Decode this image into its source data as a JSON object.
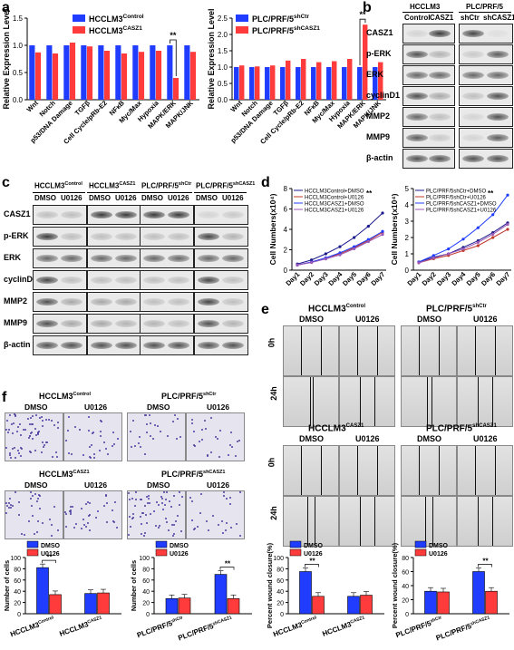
{
  "panels": {
    "a": "a",
    "b": "b",
    "c": "c",
    "d": "d",
    "e": "e",
    "f": "f"
  },
  "colors": {
    "blue": "#1f3cff",
    "red": "#ff3b3b",
    "navy": "#1a1a8c",
    "orange": "#c0392b",
    "purple": "#9b59b6",
    "dark": "#333333"
  },
  "chart_data": [
    {
      "type": "bar",
      "title": "",
      "ylabel": "Relative Expression Level",
      "ylim": [
        0,
        1.5
      ],
      "categories": [
        "Wnt",
        "Notch",
        "p53/DNA Damage",
        "TGFβ",
        "Cell Cycle/pRb-E2",
        "NFκB",
        "Myc/Max",
        "Hypoxia",
        "MAPK/ERK",
        "MAPK/JNK"
      ],
      "series": [
        {
          "name": "HCCLM3Control",
          "values": [
            1,
            1,
            1,
            1,
            1,
            1,
            1,
            1,
            1,
            1
          ]
        },
        {
          "name": "HCCLM3CASZ1",
          "values": [
            0.87,
            0.85,
            1.05,
            0.98,
            0.9,
            0.85,
            0.88,
            0.9,
            0.4,
            0.88
          ]
        }
      ],
      "annotation": "**"
    },
    {
      "type": "bar",
      "title": "",
      "ylabel": "Relative Expression Level",
      "ylim": [
        0,
        2.5
      ],
      "categories": [
        "Wnt",
        "Notch",
        "p53/DNA Damage",
        "TGFβ",
        "Cell Cycle/pRb-E2",
        "NFκB",
        "Myc/Max",
        "Hypoxia",
        "MAPK/ERK",
        "MAPK/JNK"
      ],
      "series": [
        {
          "name": "PLC/PRF/5shCtr",
          "values": [
            1,
            1,
            1,
            1,
            1,
            1,
            1,
            1,
            1,
            1
          ]
        },
        {
          "name": "PLC/PRF/5shCASZ1",
          "values": [
            1.05,
            1.02,
            1.05,
            1.2,
            1.25,
            1.15,
            1.18,
            1.25,
            2.3,
            1.15
          ]
        }
      ],
      "annotation": "**"
    },
    {
      "type": "line",
      "ylabel": "Cell Numbers(x10⁴)",
      "ylim": [
        0,
        8
      ],
      "x": [
        "Day1",
        "Day2",
        "Day3",
        "Day4",
        "Day5",
        "Day6",
        "Day7"
      ],
      "series": [
        {
          "name": "HCCLM3Control+DMSO",
          "values": [
            0.6,
            1.0,
            1.6,
            2.3,
            3.2,
            4.3,
            5.6
          ]
        },
        {
          "name": "HCCLM3Control+U0126",
          "values": [
            0.5,
            0.8,
            1.2,
            1.6,
            2.2,
            2.9,
            3.7
          ]
        },
        {
          "name": "HCCLM3CASZ1+DMSO",
          "values": [
            0.5,
            0.8,
            1.2,
            1.7,
            2.3,
            3.0,
            3.8
          ]
        },
        {
          "name": "HCCLM3CASZ1+U0126",
          "values": [
            0.5,
            0.75,
            1.1,
            1.5,
            2.1,
            2.8,
            3.5
          ]
        }
      ],
      "annotation": "**"
    },
    {
      "type": "line",
      "ylabel": "Cell Numbers(x10⁴)",
      "ylim": [
        0,
        5
      ],
      "x": [
        "Day1",
        "Day2",
        "Day3",
        "Day4",
        "Day5",
        "Day6",
        "Day7"
      ],
      "series": [
        {
          "name": "PLC/PRF/5shCtr+DMSO",
          "values": [
            0.5,
            0.8,
            1.0,
            1.4,
            1.8,
            2.3,
            2.9
          ]
        },
        {
          "name": "PLC/PRF/5shCtr+U0126",
          "values": [
            0.45,
            0.7,
            0.9,
            1.2,
            1.5,
            2.0,
            2.5
          ]
        },
        {
          "name": "PLC/PRF/5shCASZ1+DMSO",
          "values": [
            0.5,
            0.9,
            1.3,
            1.9,
            2.6,
            3.4,
            4.6
          ]
        },
        {
          "name": "PLC/PRF/5shCASZ1+U0126",
          "values": [
            0.45,
            0.75,
            1.0,
            1.3,
            1.7,
            2.2,
            2.8
          ]
        }
      ],
      "annotation": "**"
    },
    {
      "type": "bar",
      "ylabel": "Number of cells",
      "ylim": [
        0,
        100
      ],
      "categories": [
        "HCCLM3Control",
        "HCCLM3CASZ1"
      ],
      "series": [
        {
          "name": "DMSO",
          "values": [
            82,
            36
          ]
        },
        {
          "name": "U0126",
          "values": [
            34,
            37
          ]
        }
      ],
      "annotation": "**"
    },
    {
      "type": "bar",
      "ylabel": "Number of cells",
      "ylim": [
        0,
        100
      ],
      "categories": [
        "PLC/PRF/5shCtr",
        "PLC/PRF/5shCASZ1"
      ],
      "series": [
        {
          "name": "DMSO",
          "values": [
            27,
            70
          ]
        },
        {
          "name": "U0126",
          "values": [
            28,
            27
          ]
        }
      ],
      "annotation": "**"
    },
    {
      "type": "bar",
      "ylabel": "Percent wound closure(%)",
      "ylim": [
        0,
        100
      ],
      "categories": [
        "HCCLM3Control",
        "HCCLM3CASZ1"
      ],
      "series": [
        {
          "name": "DMSO",
          "values": [
            75,
            31
          ]
        },
        {
          "name": "U0126",
          "values": [
            31,
            33
          ]
        }
      ],
      "annotation": "**"
    },
    {
      "type": "bar",
      "ylabel": "Percent wound closure(%)",
      "ylim": [
        0,
        80
      ],
      "categories": [
        "PLC/PRF/5shCtr",
        "PLC/PRF/5shCASZ1"
      ],
      "series": [
        {
          "name": "DMSO",
          "values": [
            32,
            60
          ]
        },
        {
          "name": "U0126",
          "values": [
            31,
            32
          ]
        }
      ],
      "annotation": "**"
    }
  ],
  "panel_b": {
    "group1": "HCCLM3",
    "group2": "PLC/PRF/5",
    "lanes": [
      "Control",
      "CASZ1",
      "shCtr",
      "shCASZ1"
    ],
    "rows": [
      "CASZ1",
      "p-ERK",
      "ERK",
      "cyclinD1",
      "MMP2",
      "MMP9",
      "β-actin"
    ]
  },
  "panel_c": {
    "groups": [
      "HCCLM3",
      "HCCLM3",
      "PLC/PRF/5",
      "PLC/PRF/5"
    ],
    "group_sups": [
      "Control",
      "CASZ1",
      "shCtr",
      "shCASZ1"
    ],
    "lane_a": "DMSO",
    "lane_b": "U0126",
    "rows": [
      "CASZ1",
      "p-ERK",
      "ERK",
      "cyclinD1",
      "MMP2",
      "MMP9",
      "β-actin"
    ]
  },
  "panel_e": {
    "titles": [
      "HCCLM3",
      "PLC/PRF/5",
      "HCCLM3",
      "PLC/PRF/5"
    ],
    "sups": [
      "Control",
      "shCtr",
      "CASZ1",
      "shCASZ1"
    ],
    "dmso": "DMSO",
    "u0126": "U0126",
    "t0": "0h",
    "t24": "24h"
  },
  "panel_f": {
    "titles": [
      "HCCLM3",
      "PLC/PRF/5",
      "HCCLM3",
      "PLC/PRF/5"
    ],
    "sups": [
      "Control",
      "shCtr",
      "CASZ1",
      "shCASZ1"
    ],
    "dmso": "DMSO",
    "u0126": "U0126"
  }
}
